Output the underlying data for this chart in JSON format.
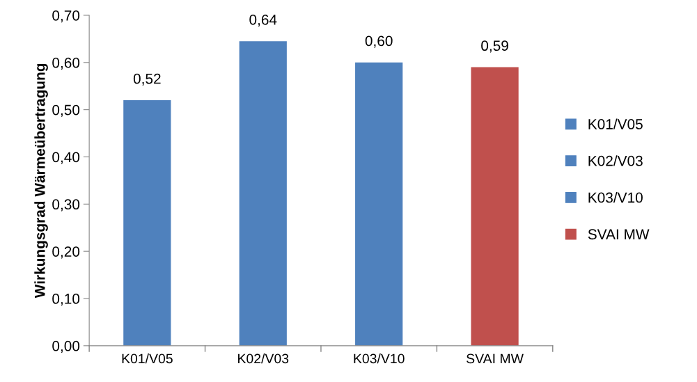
{
  "chart_data": {
    "type": "bar",
    "ylabel": "Wirkungsgrad Wärmeübertragung",
    "categories": [
      "K01/V05",
      "K02/V03",
      "K03/V10",
      "SVAI MW"
    ],
    "series": [
      {
        "name": "K01/V05",
        "color": "#4f81bd",
        "values": [
          0.52,
          null,
          null,
          null
        ],
        "value_labels": [
          "0,52",
          null,
          null,
          null
        ]
      },
      {
        "name": "K02/V03",
        "color": "#4f81bd",
        "values": [
          null,
          0.645,
          null,
          null
        ],
        "value_labels": [
          null,
          "0,64",
          null,
          null
        ]
      },
      {
        "name": "K03/V10",
        "color": "#4f81bd",
        "values": [
          null,
          null,
          0.6,
          null
        ],
        "value_labels": [
          null,
          null,
          "0,60",
          null
        ]
      },
      {
        "name": "SVAI MW",
        "color": "#c0504d",
        "values": [
          null,
          null,
          null,
          0.59
        ],
        "value_labels": [
          null,
          null,
          null,
          "0,59"
        ]
      }
    ],
    "ylim": [
      0,
      0.7
    ],
    "yticks": [
      {
        "value": 0,
        "label": "0,00"
      },
      {
        "value": 0.1,
        "label": "0,10"
      },
      {
        "value": 0.2,
        "label": "0,20"
      },
      {
        "value": 0.3,
        "label": "0,30"
      },
      {
        "value": 0.4,
        "label": "0,40"
      },
      {
        "value": 0.5,
        "label": "0,50"
      },
      {
        "value": 0.6,
        "label": "0,60"
      },
      {
        "value": 0.7,
        "label": "0,70"
      }
    ],
    "legend": "right",
    "grid": false
  }
}
